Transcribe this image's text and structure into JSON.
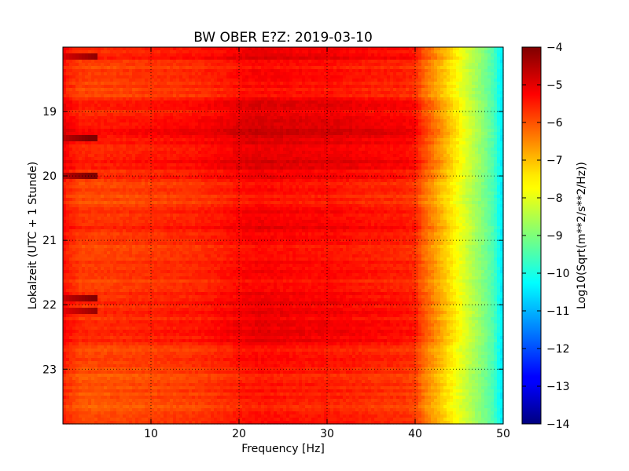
{
  "chart_data": {
    "type": "heatmap",
    "title": "BW OBER E?Z: 2019-03-10",
    "xlabel": "Frequency [Hz]",
    "ylabel": "Lokalzeit (UTC + 1 Stunde)",
    "colorbar_label": "Log10(Sqrt(m**2/s**2/Hz))",
    "colormap": "jet",
    "x_range": [
      0,
      50
    ],
    "y_range": [
      18.0,
      23.85
    ],
    "y_inverted": true,
    "value_range": [
      -14,
      -4
    ],
    "x_ticks": [
      10,
      20,
      30,
      40,
      50
    ],
    "y_ticks": [
      19,
      20,
      21,
      22,
      23
    ],
    "c_ticks": [
      -4,
      -5,
      -6,
      -7,
      -8,
      -9,
      -10,
      -11,
      -12,
      -13,
      -14
    ],
    "grid": true,
    "grid_style": "dotted",
    "frequency_profile": {
      "x": [
        0,
        0.5,
        2,
        5,
        10,
        15,
        18,
        20,
        22,
        25,
        28,
        30,
        32,
        35,
        38,
        40,
        41,
        42,
        43,
        44,
        45,
        46,
        47,
        48,
        49,
        49.5,
        50
      ],
      "value": [
        -5.4,
        -5.6,
        -5.9,
        -5.9,
        -5.8,
        -5.7,
        -5.55,
        -5.4,
        -5.3,
        -5.35,
        -5.4,
        -5.4,
        -5.45,
        -5.55,
        -5.6,
        -5.7,
        -6.3,
        -6.7,
        -7.1,
        -7.5,
        -7.9,
        -8.3,
        -8.7,
        -9.1,
        -9.6,
        -10.1,
        -10.5
      ]
    },
    "time_bands": [
      {
        "y": [
          18.0,
          18.2
        ],
        "offset": 0.25
      },
      {
        "y": [
          18.2,
          18.8
        ],
        "offset": 0.0
      },
      {
        "y": [
          18.8,
          19.1
        ],
        "offset": 0.3
      },
      {
        "y": [
          19.1,
          19.4
        ],
        "offset": 0.5
      },
      {
        "y": [
          19.4,
          19.9
        ],
        "offset": 0.35
      },
      {
        "y": [
          19.9,
          20.05
        ],
        "offset": 0.2
      },
      {
        "y": [
          20.05,
          20.5
        ],
        "offset": -0.05
      },
      {
        "y": [
          20.5,
          20.7
        ],
        "offset": 0.15
      },
      {
        "y": [
          20.7,
          21.0
        ],
        "offset": 0.2
      },
      {
        "y": [
          21.0,
          21.4
        ],
        "offset": 0.05
      },
      {
        "y": [
          21.4,
          21.8
        ],
        "offset": 0.05
      },
      {
        "y": [
          21.8,
          22.2
        ],
        "offset": 0.2
      },
      {
        "y": [
          22.2,
          22.6
        ],
        "offset": 0.25
      },
      {
        "y": [
          22.6,
          23.0
        ],
        "offset": -0.05
      },
      {
        "y": [
          23.0,
          23.85
        ],
        "offset": -0.15
      }
    ],
    "low_freq_streaks": [
      {
        "y": 18.15,
        "value": -4.9
      },
      {
        "y": 19.43,
        "value": -4.6
      },
      {
        "y": 20.0,
        "value": -4.6
      },
      {
        "y": 21.9,
        "value": -4.7
      },
      {
        "y": 22.1,
        "value": -5.0
      }
    ]
  }
}
